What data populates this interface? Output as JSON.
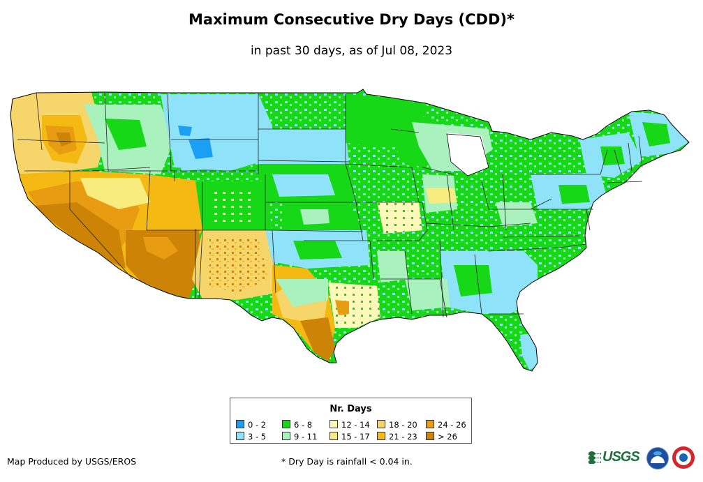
{
  "title": "Maximum Consecutive Dry Days (CDD)*",
  "subtitle": "in past 30 days, as of Jul 08, 2023",
  "legend": {
    "title": "Nr. Days",
    "items": [
      {
        "label": "0 - 2",
        "color": "#1b9ff5"
      },
      {
        "label": "3 - 5",
        "color": "#8fe3f8"
      },
      {
        "label": "6 - 8",
        "color": "#17d817"
      },
      {
        "label": "9 - 11",
        "color": "#a9f1bd"
      },
      {
        "label": "12 - 14",
        "color": "#fdf9b9"
      },
      {
        "label": "15 - 17",
        "color": "#f7ec7d"
      },
      {
        "label": "18 - 20",
        "color": "#f6d66a"
      },
      {
        "label": "21 - 23",
        "color": "#f4b913"
      },
      {
        "label": "24 - 26",
        "color": "#e89c12"
      },
      {
        "label": "> 26",
        "color": "#cd8406"
      }
    ]
  },
  "footer": {
    "credit": "Map Produced by USGS/EROS",
    "footnote": "* Dry Day is rainfall < 0.04 in."
  },
  "logos": {
    "usgs": "USGS",
    "usgs_icon": "usgs-logo-icon",
    "noaa_icon": "noaa-logo-icon",
    "nws_icon": "nws-logo-icon"
  }
}
